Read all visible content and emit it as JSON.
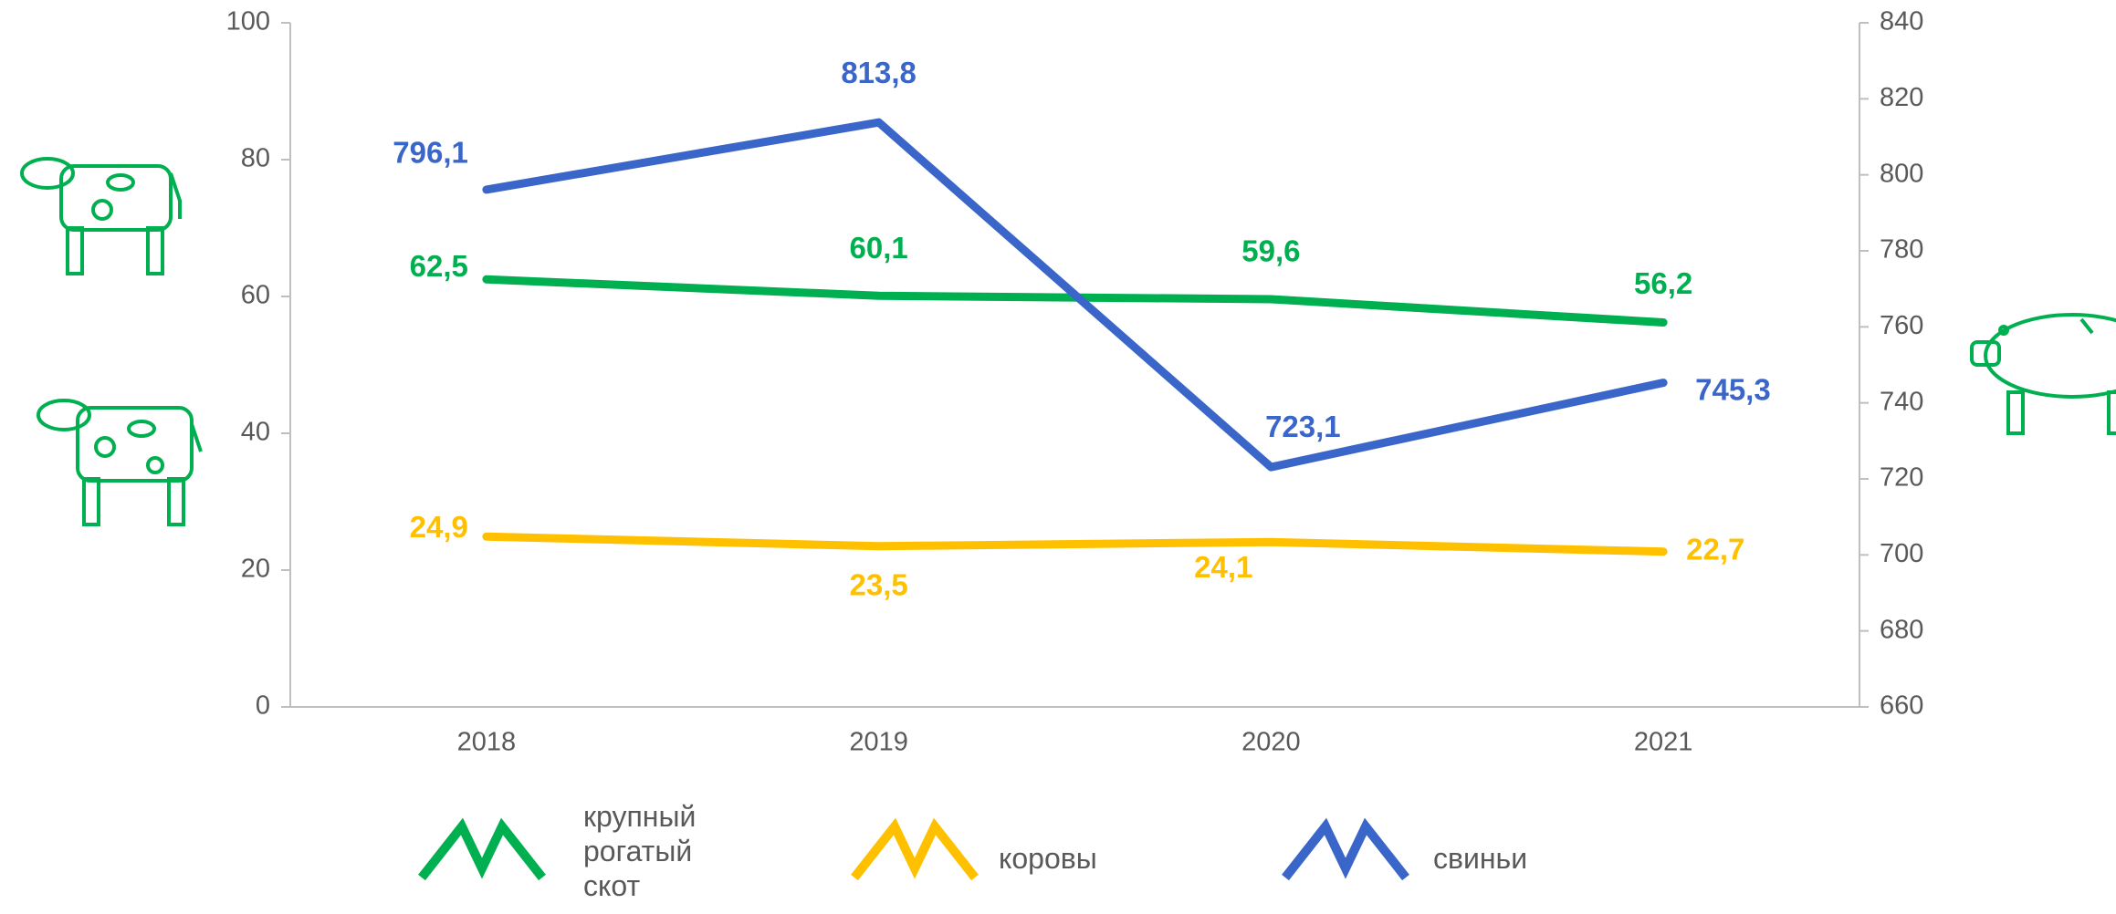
{
  "chart_data": {
    "type": "line",
    "categories": [
      "2018",
      "2019",
      "2020",
      "2021"
    ],
    "series": [
      {
        "name": "крупный рогатый скот",
        "color": "#00b050",
        "values": [
          62.5,
          60.1,
          59.6,
          56.2
        ],
        "value_labels": [
          "62,5",
          "60,1",
          "59,6",
          "56,2"
        ]
      },
      {
        "name": "коровы",
        "color": "#ffc000",
        "values": [
          24.9,
          23.5,
          24.1,
          22.7
        ],
        "value_labels": [
          "24,9",
          "23,5",
          "24,1",
          "22,7"
        ]
      },
      {
        "name": "свиньи",
        "color": "#3a66c9",
        "axis": "y2",
        "values": [
          796.1,
          813.8,
          723.1,
          745.3
        ],
        "value_labels": [
          "796,1",
          "813,8",
          "723,1",
          "745,3"
        ]
      }
    ],
    "ylim": [
      0,
      100
    ],
    "yticks": [
      0,
      20,
      40,
      60,
      80,
      100
    ],
    "y2lim": [
      660,
      840
    ],
    "y2ticks": [
      660,
      680,
      700,
      720,
      740,
      760,
      780,
      800,
      820,
      840
    ],
    "grid": false,
    "legend": "bottom"
  }
}
